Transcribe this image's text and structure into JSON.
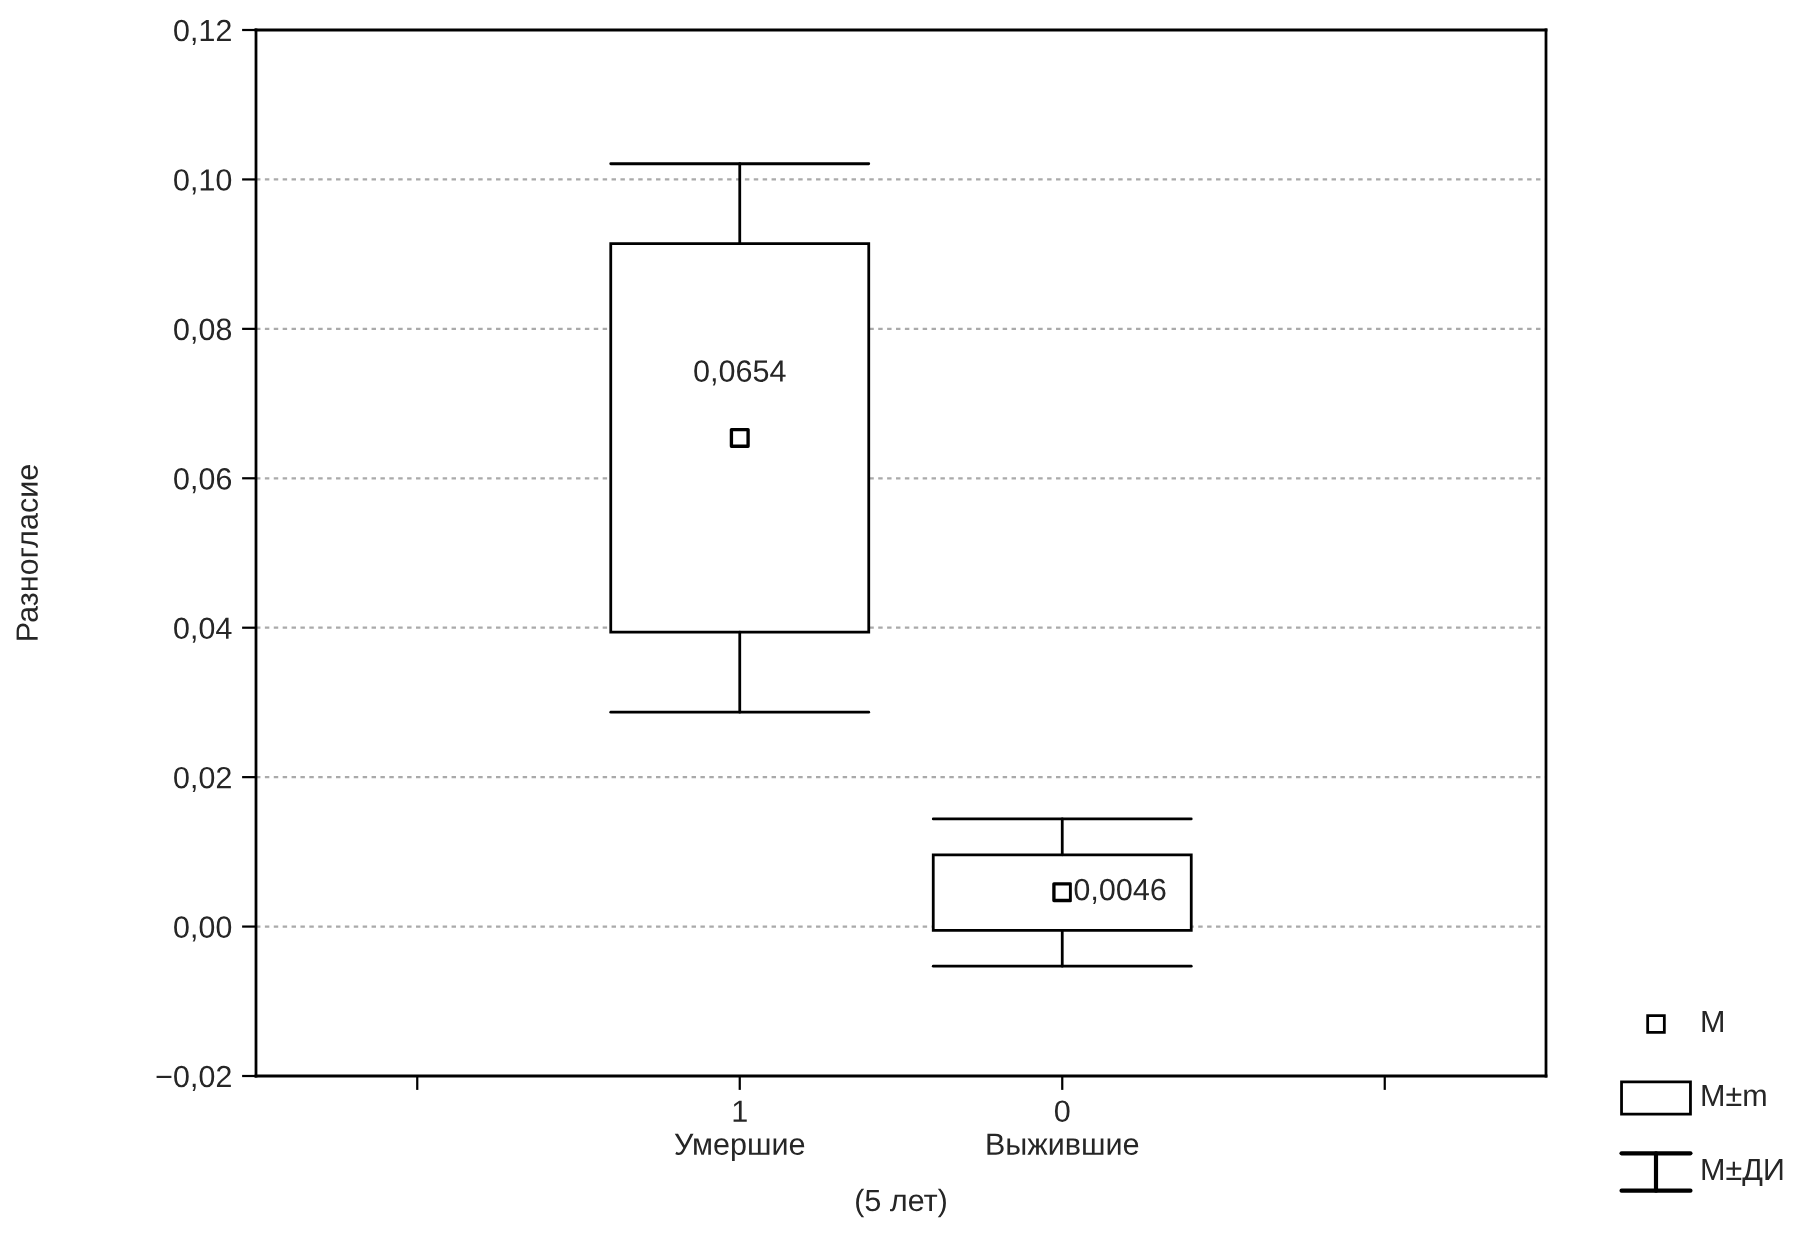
{
  "chart_data": {
    "type": "box",
    "ylabel": "Разногласие",
    "xlabel": "(5 лет)",
    "categories": [
      null,
      "1\nУмершие",
      "0\nВыжившие",
      null
    ],
    "boxes": [
      null,
      {
        "low": 0.0287,
        "q1": 0.0394,
        "q3": 0.0914,
        "high": 0.1021,
        "mean": 0.0654
      },
      {
        "low": -0.0053,
        "q1": -0.0005,
        "q3": 0.0096,
        "high": 0.0144,
        "mean": 0.0046
      },
      null
    ],
    "ylim": [
      -0.02,
      0.12
    ],
    "yticks": [
      {
        "value": -0.02,
        "label": "−0,02"
      },
      {
        "value": 0,
        "label": "0,00"
      },
      {
        "value": 0.02,
        "label": "0,02"
      },
      {
        "value": 0.04,
        "label": "0,04"
      },
      {
        "value": 0.06,
        "label": "0,06"
      },
      {
        "value": 0.08,
        "label": "0,08"
      },
      {
        "value": 0.1,
        "label": "0,10"
      },
      {
        "value": 0.12,
        "label": "0,12"
      }
    ],
    "annotations": [
      "0,0654",
      "0,0046",
      "M",
      "M±m",
      "M±ДИ"
    ],
    "grid": "y",
    "marker": "square"
  }
}
